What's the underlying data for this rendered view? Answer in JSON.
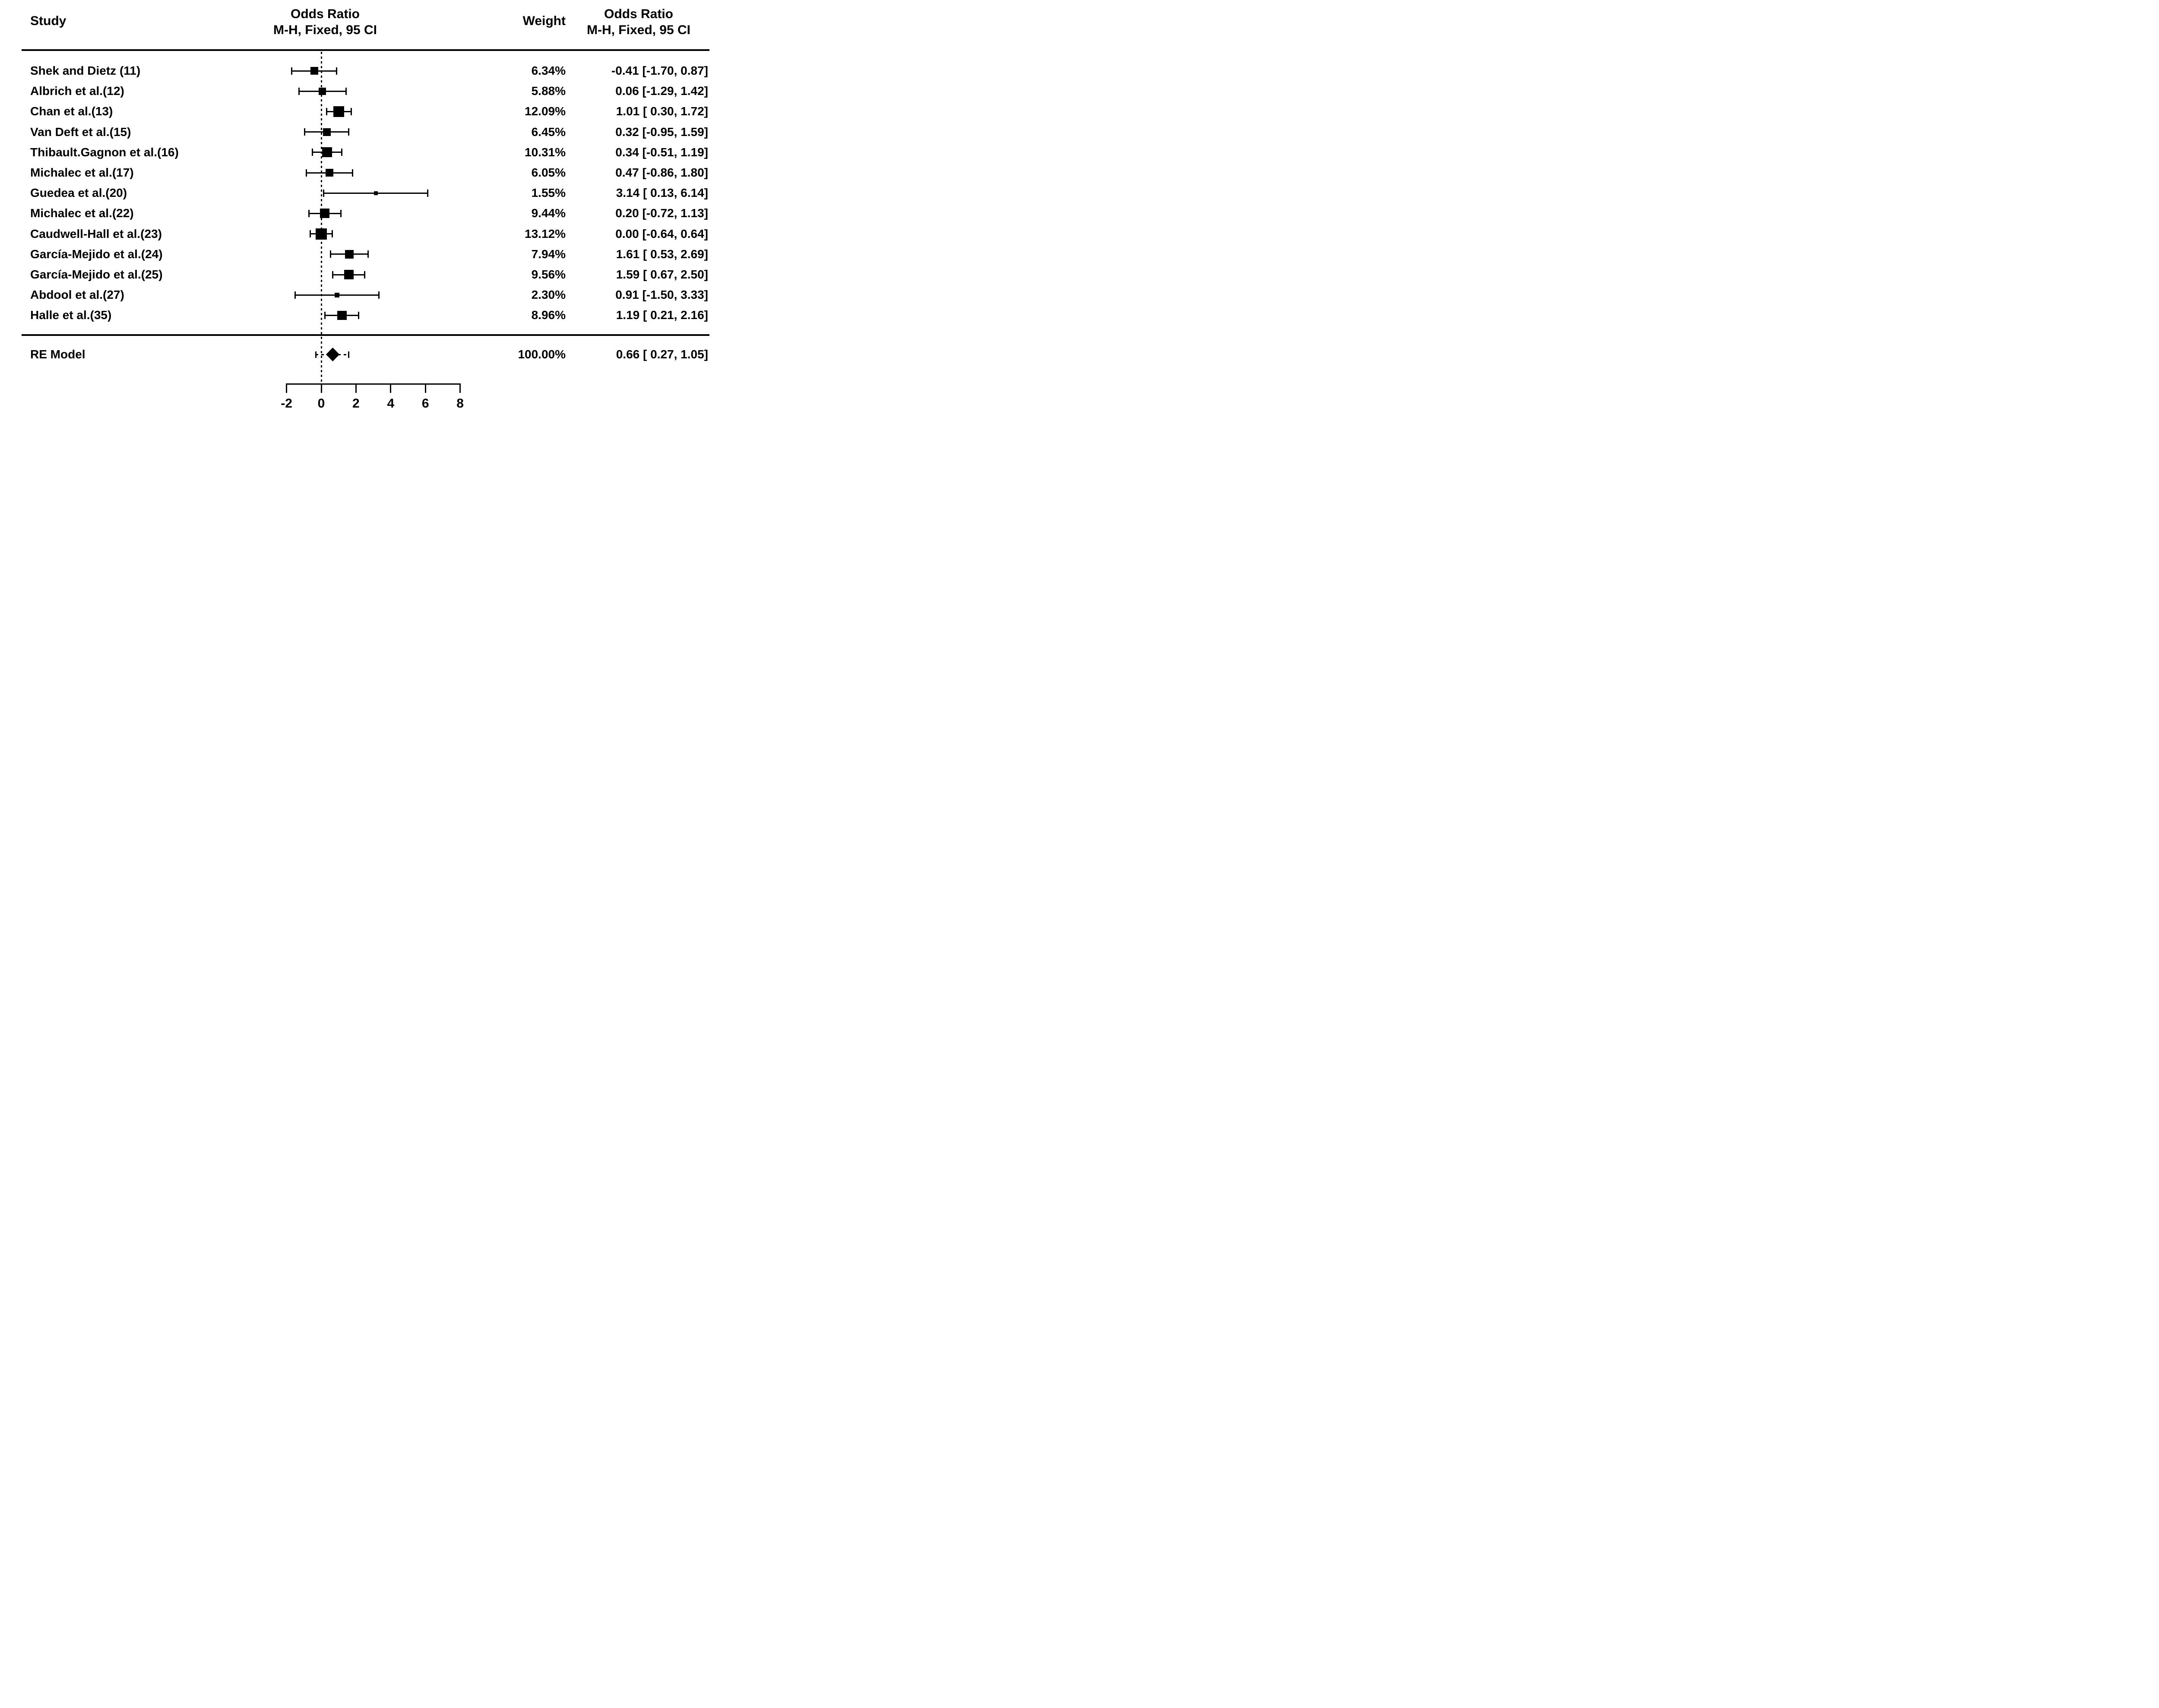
{
  "figure": {
    "background": "#ffffff",
    "ink": "#000000"
  },
  "header": {
    "study": "Study",
    "plot_title_line1": "Odds Ratio",
    "plot_title_line2": "M-H, Fixed, 95 CI",
    "weight": "Weight",
    "text_col_title_line1": "Odds Ratio",
    "text_col_title_line2": "M-H, Fixed, 95 CI"
  },
  "chart_data": {
    "type": "forest",
    "effect_measure": "Odds Ratio, M-H, Fixed, 95 CI",
    "axis": {
      "ticks": [
        -2,
        0,
        2,
        4,
        6,
        8
      ],
      "zero_reference": 0,
      "xlim": [
        -2.7,
        8.8
      ],
      "grid": false
    },
    "studies": [
      {
        "label": "Shek and Dietz (11)",
        "weight": "6.34%",
        "weight_pct": 6.34,
        "estimate": -0.41,
        "ci_low": -1.7,
        "ci_high": 0.87,
        "ci_text": "-0.41 [-1.70, 0.87]"
      },
      {
        "label": "Albrich et al.(12)",
        "weight": "5.88%",
        "weight_pct": 5.88,
        "estimate": 0.06,
        "ci_low": -1.29,
        "ci_high": 1.42,
        "ci_text": "0.06 [-1.29, 1.42]"
      },
      {
        "label": "Chan et al.(13)",
        "weight": "12.09%",
        "weight_pct": 12.09,
        "estimate": 1.01,
        "ci_low": 0.3,
        "ci_high": 1.72,
        "ci_text": "1.01 [ 0.30, 1.72]"
      },
      {
        "label": "Van Deft et al.(15)",
        "weight": "6.45%",
        "weight_pct": 6.45,
        "estimate": 0.32,
        "ci_low": -0.95,
        "ci_high": 1.59,
        "ci_text": "0.32 [-0.95, 1.59]"
      },
      {
        "label": "Thibault.Gagnon et al.(16)",
        "weight": "10.31%",
        "weight_pct": 10.31,
        "estimate": 0.34,
        "ci_low": -0.51,
        "ci_high": 1.19,
        "ci_text": "0.34 [-0.51, 1.19]"
      },
      {
        "label": "Michalec et al.(17)",
        "weight": "6.05%",
        "weight_pct": 6.05,
        "estimate": 0.47,
        "ci_low": -0.86,
        "ci_high": 1.8,
        "ci_text": "0.47 [-0.86, 1.80]"
      },
      {
        "label": "Guedea et al.(20)",
        "weight": "1.55%",
        "weight_pct": 1.55,
        "estimate": 3.14,
        "ci_low": 0.13,
        "ci_high": 6.14,
        "ci_text": "3.14 [ 0.13, 6.14]"
      },
      {
        "label": "Michalec et al.(22)",
        "weight": "9.44%",
        "weight_pct": 9.44,
        "estimate": 0.2,
        "ci_low": -0.72,
        "ci_high": 1.13,
        "ci_text": "0.20 [-0.72, 1.13]"
      },
      {
        "label": "Caudwell-Hall et al.(23)",
        "weight": "13.12%",
        "weight_pct": 13.12,
        "estimate": 0.0,
        "ci_low": -0.64,
        "ci_high": 0.64,
        "ci_text": "0.00 [-0.64, 0.64]"
      },
      {
        "label": "García-Mejido et al.(24)",
        "weight": "7.94%",
        "weight_pct": 7.94,
        "estimate": 1.61,
        "ci_low": 0.53,
        "ci_high": 2.69,
        "ci_text": "1.61 [ 0.53, 2.69]"
      },
      {
        "label": "García-Mejido et al.(25)",
        "weight": "9.56%",
        "weight_pct": 9.56,
        "estimate": 1.59,
        "ci_low": 0.67,
        "ci_high": 2.5,
        "ci_text": "1.59 [ 0.67, 2.50]"
      },
      {
        "label": "Abdool et al.(27)",
        "weight": "2.30%",
        "weight_pct": 2.3,
        "estimate": 0.91,
        "ci_low": -1.5,
        "ci_high": 3.33,
        "ci_text": "0.91 [-1.50, 3.33]"
      },
      {
        "label": "Halle et al.(35)",
        "weight": "8.96%",
        "weight_pct": 8.96,
        "estimate": 1.19,
        "ci_low": 0.21,
        "ci_high": 2.16,
        "ci_text": "1.19 [ 0.21, 2.16]"
      }
    ],
    "summary": {
      "label": "RE Model",
      "weight": "100.00%",
      "weight_pct": 100.0,
      "estimate": 0.66,
      "ci_low": 0.27,
      "ci_high": 1.05,
      "ci_text": "0.66 [ 0.27, 1.05]",
      "pi_low": -0.32,
      "pi_high": 1.59
    }
  }
}
